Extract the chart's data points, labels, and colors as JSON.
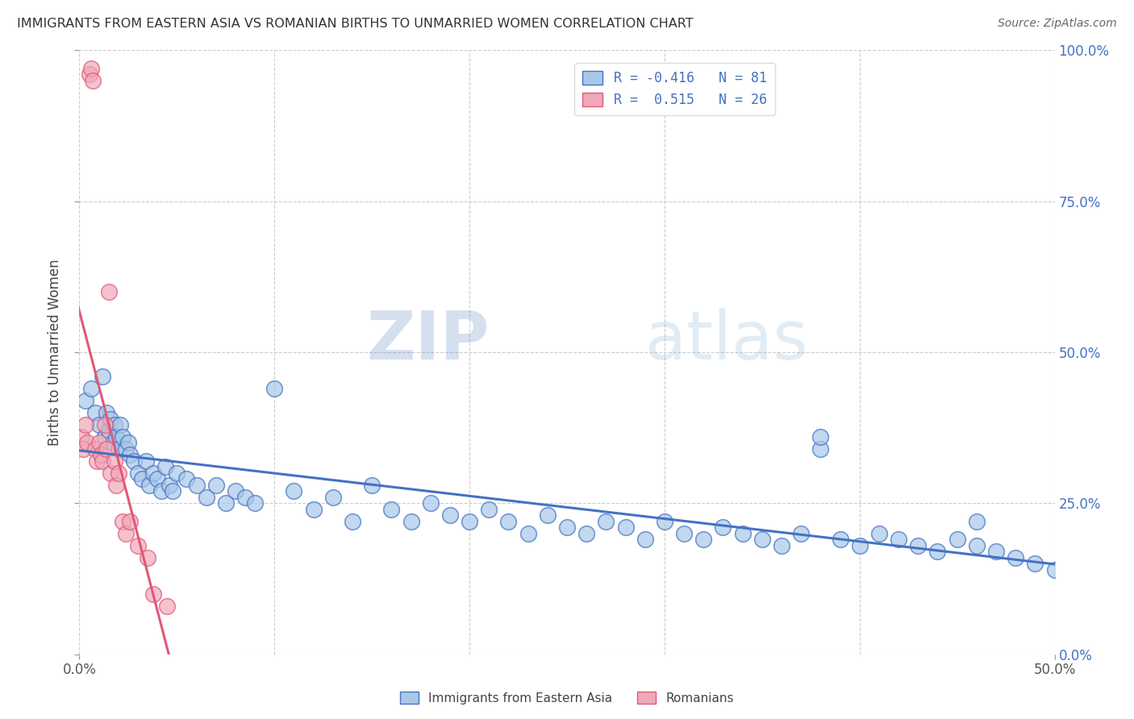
{
  "title": "IMMIGRANTS FROM EASTERN ASIA VS ROMANIAN BIRTHS TO UNMARRIED WOMEN CORRELATION CHART",
  "source": "Source: ZipAtlas.com",
  "ylabel": "Births to Unmarried Women",
  "legend_label1": "Immigrants from Eastern Asia",
  "legend_label2": "Romanians",
  "R1": -0.416,
  "N1": 81,
  "R2": 0.515,
  "N2": 26,
  "xlim": [
    0.0,
    0.5
  ],
  "ylim": [
    0.0,
    1.0
  ],
  "xticks": [
    0.0,
    0.5
  ],
  "xticklabels": [
    "0.0%",
    "50.0%"
  ],
  "yticks": [
    0.0,
    0.25,
    0.5,
    0.75,
    1.0
  ],
  "yticklabels_right": [
    "0.0%",
    "25.0%",
    "50.0%",
    "75.0%",
    "100.0%"
  ],
  "color_blue": "#a8c8e8",
  "color_pink": "#f0a8b8",
  "line_blue": "#4472c4",
  "line_pink": "#e05878",
  "watermark_zip": "ZIP",
  "watermark_atlas": "atlas",
  "background_color": "#ffffff",
  "grid_color": "#cccccc",
  "blue_scatter_x": [
    0.003,
    0.006,
    0.008,
    0.01,
    0.012,
    0.013,
    0.014,
    0.015,
    0.016,
    0.017,
    0.018,
    0.019,
    0.02,
    0.021,
    0.022,
    0.024,
    0.025,
    0.026,
    0.028,
    0.03,
    0.032,
    0.034,
    0.036,
    0.038,
    0.04,
    0.042,
    0.044,
    0.046,
    0.048,
    0.05,
    0.055,
    0.06,
    0.065,
    0.07,
    0.075,
    0.08,
    0.085,
    0.09,
    0.1,
    0.11,
    0.12,
    0.13,
    0.14,
    0.15,
    0.16,
    0.17,
    0.18,
    0.19,
    0.2,
    0.21,
    0.22,
    0.23,
    0.24,
    0.25,
    0.26,
    0.27,
    0.28,
    0.29,
    0.3,
    0.31,
    0.32,
    0.33,
    0.34,
    0.35,
    0.36,
    0.37,
    0.38,
    0.39,
    0.4,
    0.41,
    0.42,
    0.43,
    0.44,
    0.45,
    0.46,
    0.47,
    0.48,
    0.49,
    0.5,
    0.38,
    0.46
  ],
  "blue_scatter_y": [
    0.42,
    0.44,
    0.4,
    0.38,
    0.46,
    0.36,
    0.4,
    0.37,
    0.39,
    0.35,
    0.38,
    0.36,
    0.34,
    0.38,
    0.36,
    0.34,
    0.35,
    0.33,
    0.32,
    0.3,
    0.29,
    0.32,
    0.28,
    0.3,
    0.29,
    0.27,
    0.31,
    0.28,
    0.27,
    0.3,
    0.29,
    0.28,
    0.26,
    0.28,
    0.25,
    0.27,
    0.26,
    0.25,
    0.44,
    0.27,
    0.24,
    0.26,
    0.22,
    0.28,
    0.24,
    0.22,
    0.25,
    0.23,
    0.22,
    0.24,
    0.22,
    0.2,
    0.23,
    0.21,
    0.2,
    0.22,
    0.21,
    0.19,
    0.22,
    0.2,
    0.19,
    0.21,
    0.2,
    0.19,
    0.18,
    0.2,
    0.34,
    0.19,
    0.18,
    0.2,
    0.19,
    0.18,
    0.17,
    0.19,
    0.18,
    0.17,
    0.16,
    0.15,
    0.14,
    0.36,
    0.22
  ],
  "pink_scatter_x": [
    0.001,
    0.002,
    0.003,
    0.004,
    0.005,
    0.006,
    0.007,
    0.008,
    0.009,
    0.01,
    0.011,
    0.012,
    0.013,
    0.014,
    0.015,
    0.016,
    0.018,
    0.019,
    0.02,
    0.022,
    0.024,
    0.026,
    0.03,
    0.035,
    0.038,
    0.045
  ],
  "pink_scatter_y": [
    0.36,
    0.34,
    0.38,
    0.35,
    0.96,
    0.97,
    0.95,
    0.34,
    0.32,
    0.35,
    0.33,
    0.32,
    0.38,
    0.34,
    0.6,
    0.3,
    0.32,
    0.28,
    0.3,
    0.22,
    0.2,
    0.22,
    0.18,
    0.16,
    0.1,
    0.08
  ]
}
